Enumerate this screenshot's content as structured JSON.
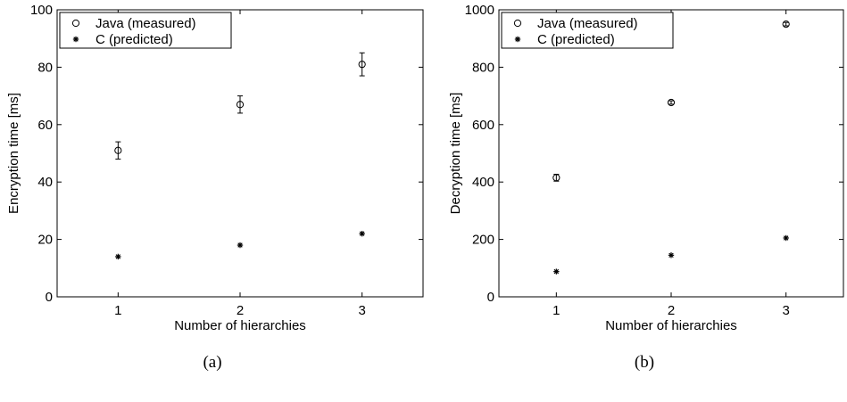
{
  "chart_data": [
    {
      "id": "a",
      "type": "scatter",
      "caption": "(a)",
      "xlabel": "Number of hierarchies",
      "ylabel": "Encryption time [ms]",
      "xlim": [
        0.5,
        3.5
      ],
      "ylim": [
        0,
        100
      ],
      "xticks": [
        1,
        2,
        3
      ],
      "yticks": [
        0,
        20,
        40,
        60,
        80,
        100
      ],
      "grid": false,
      "legend_position": "top-left",
      "series": [
        {
          "name": "Java (measured)",
          "marker": "circle",
          "x": [
            1,
            2,
            3
          ],
          "y": [
            51,
            67,
            81
          ],
          "error": [
            3,
            3,
            4
          ]
        },
        {
          "name": "C (predicted)",
          "marker": "asterisk",
          "x": [
            1,
            2,
            3
          ],
          "y": [
            14,
            18,
            22
          ]
        }
      ]
    },
    {
      "id": "b",
      "type": "scatter",
      "caption": "(b)",
      "xlabel": "Number of hierarchies",
      "ylabel": "Decryption time [ms]",
      "xlim": [
        0.5,
        3.5
      ],
      "ylim": [
        0,
        1000
      ],
      "xticks": [
        1,
        2,
        3
      ],
      "yticks": [
        0,
        200,
        400,
        600,
        800,
        1000
      ],
      "grid": false,
      "legend_position": "top-left",
      "series": [
        {
          "name": "Java (measured)",
          "marker": "circle",
          "x": [
            1,
            2,
            3
          ],
          "y": [
            415,
            677,
            950
          ],
          "error": [
            12,
            6,
            6
          ]
        },
        {
          "name": "C (predicted)",
          "marker": "asterisk",
          "x": [
            1,
            2,
            3
          ],
          "y": [
            88,
            145,
            205
          ]
        }
      ]
    }
  ]
}
